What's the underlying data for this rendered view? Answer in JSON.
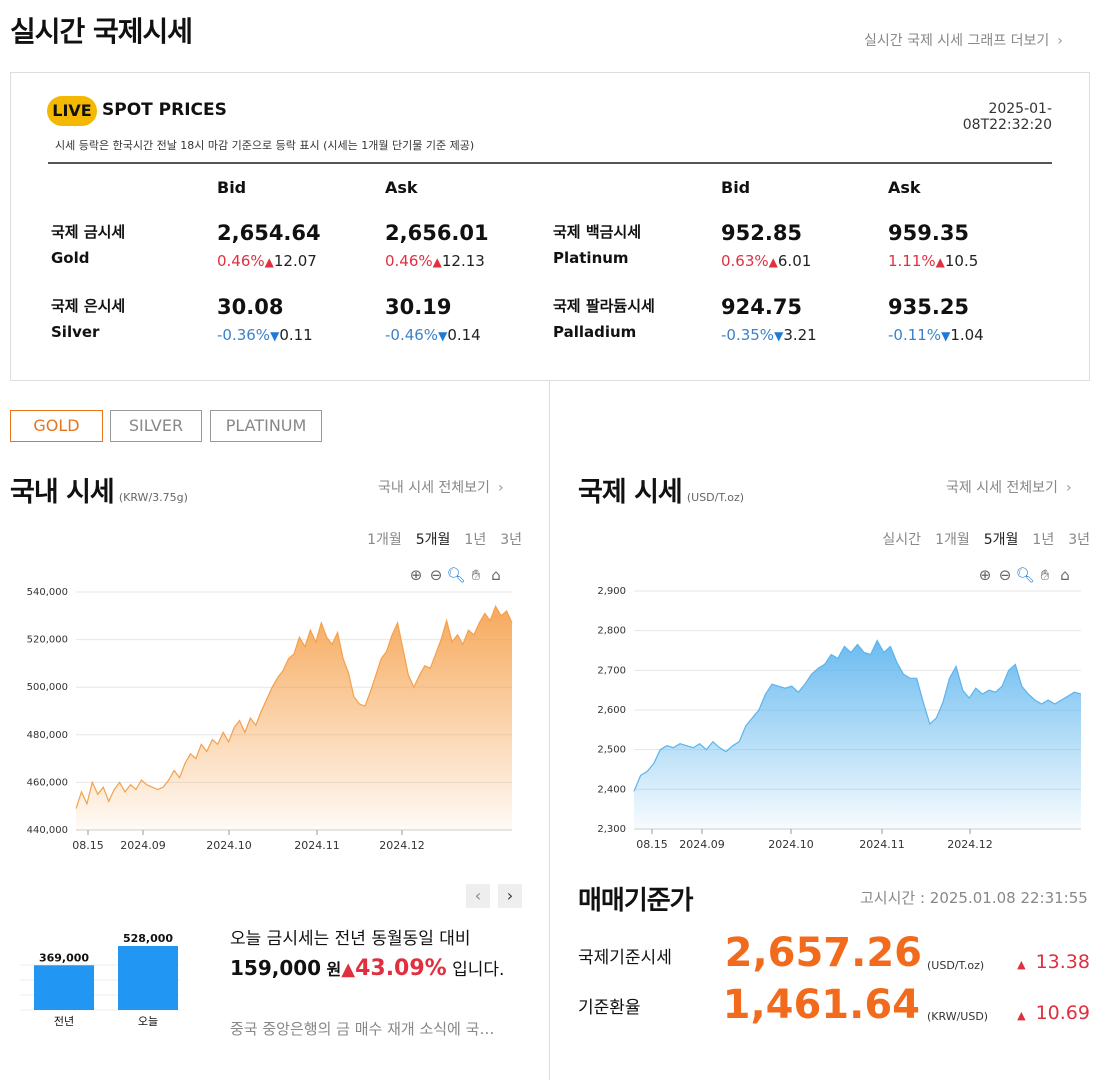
{
  "header": {
    "title": "실시간 국제시세",
    "more_link": "실시간 국제 시세 그래프 더보기"
  },
  "spot": {
    "live_badge": "LIVE",
    "title": "SPOT PRICES",
    "timestamp": "2025-01-08T22:32:20",
    "note": "시세 등락은 한국시간 전날 18시 마감 기준으로 등락 표시 (시세는 1개월 단기물 기준 제공)",
    "bid_label": "Bid",
    "ask_label": "Ask",
    "metals": [
      {
        "name_kr": "국제 금시세",
        "name_en": "Gold",
        "bid": "2,654.64",
        "bid_pct": "0.46%",
        "bid_dir": "up",
        "bid_chg": "12.07",
        "ask": "2,656.01",
        "ask_pct": "0.46%",
        "ask_dir": "up",
        "ask_chg": "12.13"
      },
      {
        "name_kr": "국제 백금시세",
        "name_en": "Platinum",
        "bid": "952.85",
        "bid_pct": "0.63%",
        "bid_dir": "up",
        "bid_chg": "6.01",
        "ask": "959.35",
        "ask_pct": "1.11%",
        "ask_dir": "up",
        "ask_chg": "10.5"
      },
      {
        "name_kr": "국제 은시세",
        "name_en": "Silver",
        "bid": "30.08",
        "bid_pct": "-0.36%",
        "bid_dir": "down",
        "bid_chg": "0.11",
        "ask": "30.19",
        "ask_pct": "-0.46%",
        "ask_dir": "down",
        "ask_chg": "0.14"
      },
      {
        "name_kr": "국제 팔라듐시세",
        "name_en": "Palladium",
        "bid": "924.75",
        "bid_pct": "-0.35%",
        "bid_dir": "down",
        "bid_chg": "3.21",
        "ask": "935.25",
        "ask_pct": "-0.11%",
        "ask_dir": "down",
        "ask_chg": "1.04"
      }
    ]
  },
  "tabs": [
    "GOLD",
    "SILVER",
    "PLATINUM"
  ],
  "domestic": {
    "title": "국내 시세",
    "unit": "(KRW/3.75g)",
    "more_link": "국내 시세 전체보기",
    "periods": [
      "1개월",
      "5개월",
      "1년",
      "3년"
    ],
    "selected_period": "5개월"
  },
  "international": {
    "title": "국제 시세",
    "unit": "(USD/T.oz)",
    "more_link": "국제 시세 전체보기",
    "periods": [
      "실시간",
      "1개월",
      "5개월",
      "1년",
      "3년"
    ],
    "selected_period": "5개월"
  },
  "chart_data": [
    {
      "type": "area",
      "color": "#f5a04a",
      "ylim": [
        440000,
        540000
      ],
      "y_ticks": [
        "540,000",
        "520,000",
        "500,000",
        "480,000",
        "460,000",
        "440,000"
      ],
      "x_ticks": [
        "08.15",
        "2024.09",
        "2024.10",
        "2024.11",
        "2024.12"
      ],
      "values": [
        449000,
        456000,
        451000,
        460000,
        455000,
        458000,
        452000,
        457000,
        460000,
        456000,
        459000,
        457000,
        461000,
        459000,
        458000,
        457000,
        458000,
        461000,
        465000,
        462000,
        468000,
        472000,
        470000,
        476000,
        473000,
        478000,
        476000,
        481000,
        477000,
        483000,
        486000,
        481000,
        487000,
        484000,
        490000,
        495000,
        500000,
        504000,
        507000,
        512000,
        514000,
        521000,
        517000,
        524000,
        519000,
        527000,
        521000,
        518000,
        523000,
        512000,
        506000,
        496000,
        493000,
        492000,
        498000,
        505000,
        512000,
        515000,
        522000,
        527000,
        516000,
        505000,
        500000,
        505000,
        509000,
        508000,
        514000,
        520000,
        528000,
        519000,
        522000,
        518000,
        524000,
        522000,
        527000,
        531000,
        528000,
        534000,
        530000,
        532000,
        527000
      ]
    },
    {
      "type": "area",
      "color": "#5bb4ee",
      "ylim": [
        2300,
        2900
      ],
      "y_ticks": [
        "2,900",
        "2,800",
        "2,700",
        "2,600",
        "2,500",
        "2,400",
        "2,300"
      ],
      "x_ticks": [
        "08.15",
        "2024.09",
        "2024.10",
        "2024.11",
        "2024.12"
      ],
      "values": [
        2395,
        2435,
        2445,
        2465,
        2500,
        2510,
        2505,
        2515,
        2510,
        2505,
        2515,
        2500,
        2520,
        2505,
        2495,
        2510,
        2520,
        2560,
        2580,
        2600,
        2640,
        2665,
        2660,
        2655,
        2660,
        2645,
        2665,
        2690,
        2705,
        2715,
        2740,
        2730,
        2760,
        2745,
        2765,
        2745,
        2740,
        2775,
        2745,
        2760,
        2720,
        2690,
        2680,
        2680,
        2620,
        2565,
        2580,
        2620,
        2680,
        2710,
        2650,
        2630,
        2655,
        2640,
        2650,
        2645,
        2660,
        2700,
        2715,
        2660,
        2640,
        2625,
        2615,
        2625,
        2615,
        2625,
        2635,
        2645,
        2640
      ]
    },
    {
      "type": "bar",
      "categories": [
        "전년",
        "오늘"
      ],
      "values": [
        369000,
        528000
      ],
      "value_labels": [
        "369,000",
        "528,000"
      ],
      "color": "#2196f3"
    }
  ],
  "news": {
    "line1": "오늘 금시세는 전년 동월동일 대비",
    "amount": "159,000",
    "won": "원",
    "pct": "43.09%",
    "tail": "입니다.",
    "sub": "중국 중앙은행의 금 매수 재개 소식에 국…"
  },
  "reference": {
    "title": "매매기준가",
    "time_label": "고시시간 : 2025.01.08 22:31:55",
    "rows": [
      {
        "label": "국제기준시세",
        "value": "2,657.26",
        "unit": "(USD/T.oz)",
        "change": "13.38"
      },
      {
        "label": "기준환율",
        "value": "1,461.64",
        "unit": "(KRW/USD)",
        "change": "10.69"
      }
    ]
  }
}
